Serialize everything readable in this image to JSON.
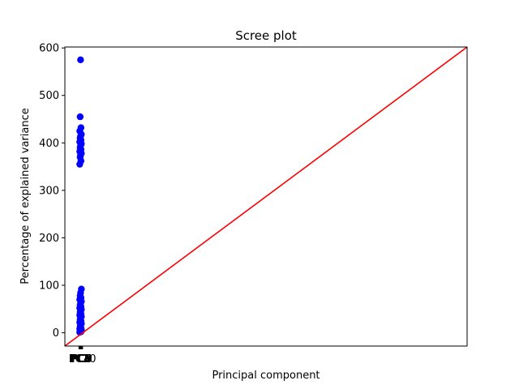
{
  "chart_data": {
    "type": "scatter",
    "title": "Scree plot",
    "xlabel": "Principal component",
    "ylabel": "Percentage of explained variance",
    "ylim": [
      -28,
      602
    ],
    "xlim": [
      -0.7,
      19.3
    ],
    "y_ticks": [
      0,
      100,
      200,
      300,
      400,
      500,
      600
    ],
    "x_tick_labels": [
      "PC1",
      "PC2",
      "PC3",
      "PC4",
      "PC5",
      "PC6",
      "PC7",
      "PC8",
      "PC9",
      "PC10"
    ],
    "x_tick_positions": [
      0,
      0.02,
      0.04,
      0.06,
      0.08,
      0.1,
      0.12,
      0.14,
      0.16,
      0.18
    ],
    "grid": false,
    "series": [
      {
        "type": "scatter",
        "color": "#0000ff",
        "x": [
          0.08,
          0.06,
          0.1,
          0.04,
          0.12,
          0.08,
          0.06,
          0.1,
          0.04,
          0.12,
          0.08,
          0.06,
          0.1,
          0.04,
          0.12,
          0.08,
          0.06,
          0.1,
          0.04,
          0.12,
          0.08,
          0.06,
          0.1,
          0.04,
          0.12,
          0.08,
          0.06,
          0.1,
          0.04,
          0.12,
          0.08,
          0.06,
          0.1,
          0.04,
          0.12,
          0.08,
          0.06,
          0.1,
          0.04,
          0.12,
          0.08,
          0.06,
          0.1,
          0.04,
          0.12,
          0.08,
          0.06,
          0.1,
          0.04
        ],
        "y": [
          575,
          455,
          432,
          425,
          418,
          414,
          410,
          406,
          402,
          398,
          394,
          390,
          386,
          382,
          378,
          374,
          370,
          362,
          355,
          92,
          84,
          78,
          74,
          70,
          66,
          62,
          58,
          55,
          52,
          49,
          46,
          43,
          40,
          37,
          34,
          31,
          28,
          25,
          22,
          19,
          16,
          13,
          10,
          8,
          6,
          4,
          3,
          2,
          1
        ]
      },
      {
        "type": "line",
        "color": "#ff0000",
        "x": [
          -0.7,
          19.3
        ],
        "y": [
          -28,
          602
        ]
      }
    ]
  }
}
